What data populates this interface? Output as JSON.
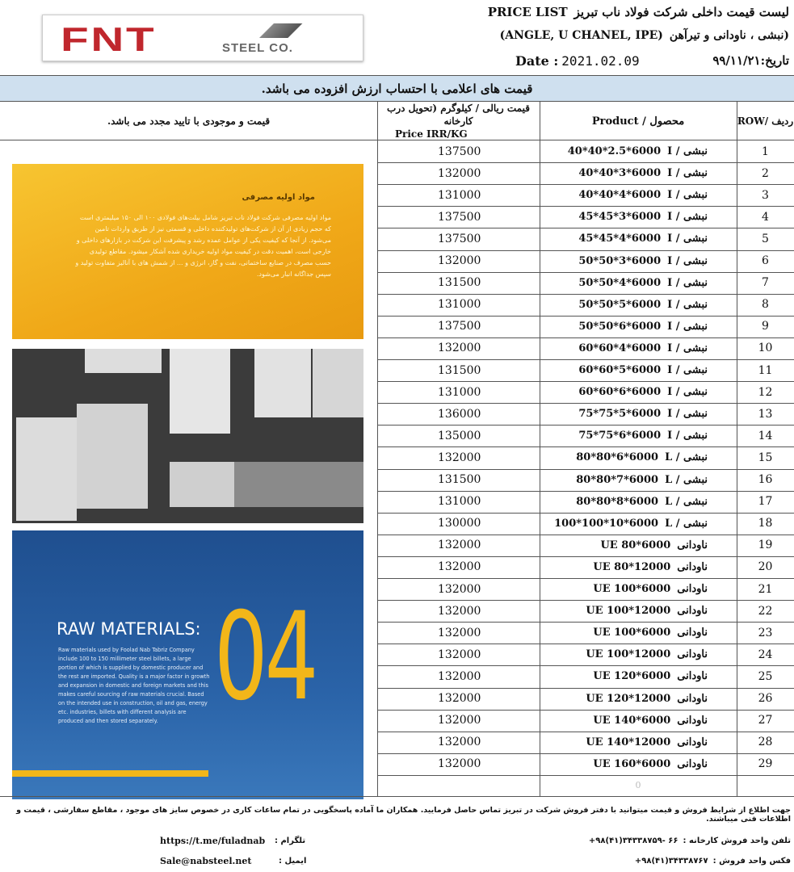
{
  "header": {
    "logo_main": "FNT",
    "logo_sub": "STEEL CO.",
    "title_fa": "لیست قیمت داخلی شرکت فولاد ناب تبریز",
    "title_en": "PRICE LIST",
    "subtitle_fa": "(نبشی ، ناودانی و تیرآهن",
    "subtitle_en": "(ANGLE, U CHANEL, IPE)",
    "date_label": "Date :",
    "date": "2021.02.09",
    "date_fa": "تاریخ:۹۹/۱۱/۲۱"
  },
  "banner": "قیمت های اعلامی با احتساب ارزش افزوده می باشد.",
  "table": {
    "headers": {
      "row": "ردیف /ROW",
      "product": "محصول / Product",
      "price_fa": "قیمت ریالی / کیلوگرم (تحویل درب کارخانه",
      "price_en": "Price IRR/KG",
      "note": "قیمت و موجودی با تایید مجدد می باشد."
    },
    "rows": [
      [
        1,
        "نبشی / I",
        "40*40*2.5*6000",
        137500
      ],
      [
        2,
        "نبشی / I",
        "40*40*3*6000",
        132000
      ],
      [
        3,
        "نبشی / I",
        "40*40*4*6000",
        131000
      ],
      [
        4,
        "نبشی / I",
        "45*45*3*6000",
        137500
      ],
      [
        5,
        "نبشی / I",
        "45*45*4*6000",
        137500
      ],
      [
        6,
        "نبشی / I",
        "50*50*3*6000",
        132000
      ],
      [
        7,
        "نبشی / I",
        "50*50*4*6000",
        131500
      ],
      [
        8,
        "نبشی / I",
        "50*50*5*6000",
        131000
      ],
      [
        9,
        "نبشی / I",
        "50*50*6*6000",
        137500
      ],
      [
        10,
        "نبشی / I",
        "60*60*4*6000",
        132000
      ],
      [
        11,
        "نبشی / I",
        "60*60*5*6000",
        131500
      ],
      [
        12,
        "نبشی / I",
        "60*60*6*6000",
        131000
      ],
      [
        13,
        "نبشی / I",
        "75*75*5*6000",
        136000
      ],
      [
        14,
        "نبشی / I",
        "75*75*6*6000",
        135000
      ],
      [
        15,
        "نبشی / L",
        "80*80*6*6000",
        132000
      ],
      [
        16,
        "نبشی / L",
        "80*80*7*6000",
        131500
      ],
      [
        17,
        "نبشی / L",
        "80*80*8*6000",
        131000
      ],
      [
        18,
        "نبشی / L",
        "100*100*10*6000",
        130000
      ],
      [
        19,
        "ناودانی",
        "UE 80*6000",
        132000
      ],
      [
        20,
        "ناودانی",
        "UE 80*12000",
        132000
      ],
      [
        21,
        "ناودانی",
        "UE 100*6000",
        132000
      ],
      [
        22,
        "ناودانی",
        "UE 100*12000",
        132000
      ],
      [
        23,
        "ناودانی",
        "UE 100*6000",
        132000
      ],
      [
        24,
        "ناودانی",
        "UE 100*12000",
        132000
      ],
      [
        25,
        "ناودانی",
        "UE 120*6000",
        132000
      ],
      [
        26,
        "ناودانی",
        "UE 120*12000",
        132000
      ],
      [
        27,
        "ناودانی",
        "UE 140*6000",
        132000
      ],
      [
        28,
        "ناودانی",
        "UE 140*12000",
        132000
      ],
      [
        29,
        "ناودانی",
        "UE 160*6000",
        132000
      ]
    ],
    "empty_cell": "0"
  },
  "panel": {
    "heading_fa": "مواد اولیه مصرفی",
    "text_fa": "مواد اولیه مصرفی شرکت فولاد ناب تبریز شامل بیلت‌های فولادی ۱۰۰ الی ۱۵۰ میلیمتری است که حجم زیادی از آن از شرکت‌های تولیدکننده داخلی و قسمتی نیز از طریق واردات تامین می‌شود. از آنجا که کیفیت یکی از عوامل عمده رشد و پیشرفت این شرکت در بازارهای داخلی و خارجی است، اهمیت دقت در کیفیت مواد اولیه خریداری شده آشکار میشود. مقاطع تولیدی حسب مصرف در صنایع ساختمانی، نفت و گاز، انرژی و ... از شمش های با آنالیز متفاوت تولید و سپس جداگانه انبار می‌شود.",
    "heading_en": "RAW MATERIALS:",
    "text_en": "Raw materials used by Foolad Nab Tabriz Company include 100 to 150 millimeter steel billets, a large portion of which is supplied by domestic producer and the rest are imported. Quality is a major factor in growth and expansion in domestic and foreign markets and this makes careful sourcing of raw materials crucial. Based on the intended use in construction, oil and gas, energy etc. industries, billets with different analysis are produced and then stored separately.",
    "number": "04"
  },
  "footer": {
    "note": "جهت اطلاع از شرایط فروش و قیمت میتوانید با دفتر فروش شرکت در تبریز تماس حاصل فرمایید. همکاران ما آماده پاسخگویی در تمام ساعات کاری در خصوص سایز های موجود ، مقاطع سفارشی ، قیمت و اطلاعات فنی میباشند.",
    "phone_label": "تلفن واحد فروش کارخانه :",
    "phone": "+۹۸(۴۱)۳۴۳۳۸۷۵۹- ۶۶",
    "fax_label": "فکس واحد فروش :",
    "fax": "+۹۸(۴۱)۳۴۳۳۸۷۶۷",
    "telegram_label": "تلگرام :",
    "telegram": "https://t.me/fuladnab",
    "email_label": "ایمیل :",
    "email": "Sale@nabsteel.net"
  }
}
